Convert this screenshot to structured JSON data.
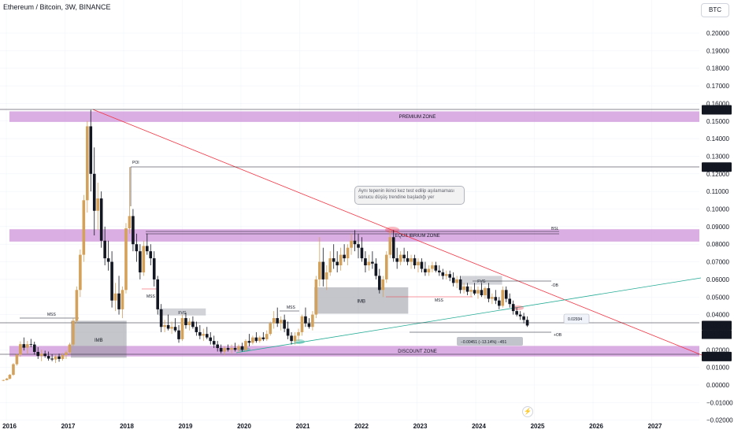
{
  "header": {
    "title": "Ethereum / Bitcoin, 3W, BINANCE",
    "currency_button": "BTC"
  },
  "chart_data": {
    "type": "candlestick",
    "x_ticks": [
      "2016",
      "2017",
      "2018",
      "2019",
      "2020",
      "2021",
      "2022",
      "2023",
      "2024",
      "2025",
      "2026",
      "2027"
    ],
    "y_ticks": [
      0.2,
      0.19,
      0.18,
      0.17,
      0.16,
      0.15,
      0.14,
      0.13,
      0.12,
      0.11,
      0.1,
      0.09,
      0.08,
      0.07,
      0.06,
      0.05,
      0.04,
      0.03,
      0.02,
      0.01,
      0.0,
      -0.01,
      -0.02
    ],
    "y_tick_labels": [
      "0.20000",
      "0.19000",
      "0.18000",
      "0.17000",
      "0.16000",
      "0.15000",
      "0.14000",
      "0.13000",
      "0.12000",
      "0.11000",
      "0.10000",
      "0.09000",
      "0.08000",
      "0.07000",
      "0.06000",
      "0.05000",
      "0.04000",
      "0.03000",
      "0.02000",
      "0.01000",
      "0.00000",
      "−0.01000",
      "−0.02000"
    ],
    "ylim": [
      -0.024,
      0.207
    ],
    "xlim": [
      2015.95,
      2027.6
    ],
    "price_badges": [
      {
        "value": 0.15636,
        "label": "0.15636",
        "style": "plain"
      },
      {
        "value": 0.1238,
        "label": "0.12380",
        "style": "plain"
      },
      {
        "value": 0.03377,
        "label": "0.03377",
        "sublabel": "12d 10h",
        "style": "current"
      },
      {
        "value": 0.01615,
        "label": "0.01615",
        "style": "plain"
      }
    ],
    "zones": [
      {
        "name": "PREMIUM ZONE",
        "low": 0.1495,
        "high": 0.1555
      },
      {
        "name": "EQUILIBRIUM ZONE",
        "low": 0.0815,
        "high": 0.0885
      },
      {
        "name": "DISCOUNT ZONE",
        "low": 0.0162,
        "high": 0.0222
      }
    ],
    "boxes": [
      {
        "label": "IMB",
        "x0": 2017.1,
        "x1": 2018.05,
        "low": 0.0155,
        "high": 0.0365
      },
      {
        "label": "IMB",
        "x0": 2021.25,
        "x1": 2022.85,
        "low": 0.0405,
        "high": 0.0555
      },
      {
        "label": "FVG",
        "x0": 2018.6,
        "x1": 2019.4,
        "low": 0.0395,
        "high": 0.0435
      },
      {
        "label": "FVG",
        "x0": 2023.75,
        "x1": 2024.45,
        "low": 0.057,
        "high": 0.062
      }
    ],
    "annotations": [
      "POI",
      "BSL",
      "MSS",
      "MSS",
      "MSS",
      "MSS",
      "-OB",
      "+OB",
      "0.02934",
      "−0.00451 (−13.14%) −451"
    ],
    "callout": "Aynı tepenin ikinci kez test edilip aşılamaması sonucu düşüş trendine başladığı yer",
    "candles": [
      [
        2015.95,
        0.0026,
        0.003,
        0.0022,
        0.0028
      ],
      [
        2016.01,
        0.0028,
        0.004,
        0.0026,
        0.0036
      ],
      [
        2016.06,
        0.0036,
        0.0062,
        0.0032,
        0.0058
      ],
      [
        2016.12,
        0.0058,
        0.0124,
        0.0052,
        0.0118
      ],
      [
        2016.18,
        0.0118,
        0.0178,
        0.011,
        0.0172
      ],
      [
        2016.24,
        0.0172,
        0.0248,
        0.016,
        0.0232
      ],
      [
        2016.3,
        0.0232,
        0.027,
        0.0196,
        0.0212
      ],
      [
        2016.36,
        0.0212,
        0.025,
        0.0178,
        0.0232
      ],
      [
        2016.42,
        0.0232,
        0.0262,
        0.0214,
        0.023
      ],
      [
        2016.48,
        0.023,
        0.0246,
        0.0172,
        0.0188
      ],
      [
        2016.54,
        0.0188,
        0.0215,
        0.0148,
        0.0165
      ],
      [
        2016.6,
        0.0165,
        0.02,
        0.0135,
        0.0178
      ],
      [
        2016.66,
        0.0178,
        0.0195,
        0.0155,
        0.0165
      ],
      [
        2016.72,
        0.0165,
        0.019,
        0.0138,
        0.015
      ],
      [
        2016.78,
        0.015,
        0.0175,
        0.0135,
        0.0145
      ],
      [
        2016.84,
        0.0145,
        0.0172,
        0.0125,
        0.0162
      ],
      [
        2016.9,
        0.0162,
        0.0178,
        0.0132,
        0.0148
      ],
      [
        2016.96,
        0.0148,
        0.0182,
        0.0138,
        0.017
      ],
      [
        2017.02,
        0.017,
        0.0195,
        0.0148,
        0.0185
      ],
      [
        2017.08,
        0.0185,
        0.024,
        0.0175,
        0.023
      ],
      [
        2017.14,
        0.023,
        0.038,
        0.022,
        0.0365
      ],
      [
        2017.2,
        0.0365,
        0.056,
        0.035,
        0.054
      ],
      [
        2017.26,
        0.054,
        0.077,
        0.05,
        0.074
      ],
      [
        2017.32,
        0.074,
        0.108,
        0.07,
        0.105
      ],
      [
        2017.38,
        0.105,
        0.15,
        0.098,
        0.147
      ],
      [
        2017.44,
        0.147,
        0.1563,
        0.11,
        0.12
      ],
      [
        2017.5,
        0.12,
        0.135,
        0.085,
        0.099
      ],
      [
        2017.56,
        0.099,
        0.115,
        0.088,
        0.106
      ],
      [
        2017.62,
        0.106,
        0.11,
        0.078,
        0.082
      ],
      [
        2017.68,
        0.082,
        0.09,
        0.068,
        0.072
      ],
      [
        2017.74,
        0.072,
        0.082,
        0.065,
        0.07
      ],
      [
        2017.8,
        0.07,
        0.076,
        0.044,
        0.048
      ],
      [
        2017.86,
        0.048,
        0.058,
        0.042,
        0.052
      ],
      [
        2017.92,
        0.052,
        0.062,
        0.04,
        0.043
      ],
      [
        2017.98,
        0.043,
        0.056,
        0.038,
        0.054
      ],
      [
        2018.04,
        0.054,
        0.092,
        0.052,
        0.089
      ],
      [
        2018.1,
        0.089,
        0.1238,
        0.086,
        0.096
      ],
      [
        2018.16,
        0.096,
        0.1,
        0.076,
        0.08
      ],
      [
        2018.22,
        0.08,
        0.086,
        0.07,
        0.076
      ],
      [
        2018.28,
        0.076,
        0.08,
        0.06,
        0.064
      ],
      [
        2018.34,
        0.064,
        0.082,
        0.062,
        0.079
      ],
      [
        2018.4,
        0.079,
        0.086,
        0.074,
        0.076
      ],
      [
        2018.46,
        0.076,
        0.08,
        0.068,
        0.072
      ],
      [
        2018.52,
        0.072,
        0.076,
        0.056,
        0.06
      ],
      [
        2018.58,
        0.06,
        0.062,
        0.04,
        0.043
      ],
      [
        2018.64,
        0.043,
        0.046,
        0.03,
        0.033
      ],
      [
        2018.7,
        0.033,
        0.037,
        0.03,
        0.034
      ],
      [
        2018.76,
        0.034,
        0.04,
        0.031,
        0.032
      ],
      [
        2018.82,
        0.032,
        0.036,
        0.029,
        0.033
      ],
      [
        2018.88,
        0.033,
        0.038,
        0.03,
        0.031
      ],
      [
        2018.94,
        0.031,
        0.034,
        0.024,
        0.026
      ],
      [
        2019.0,
        0.026,
        0.04,
        0.025,
        0.038
      ],
      [
        2019.06,
        0.038,
        0.041,
        0.032,
        0.034
      ],
      [
        2019.12,
        0.034,
        0.038,
        0.031,
        0.036
      ],
      [
        2019.18,
        0.036,
        0.039,
        0.032,
        0.033
      ],
      [
        2019.24,
        0.033,
        0.036,
        0.028,
        0.03
      ],
      [
        2019.3,
        0.03,
        0.034,
        0.026,
        0.028
      ],
      [
        2019.36,
        0.028,
        0.032,
        0.025,
        0.029
      ],
      [
        2019.42,
        0.029,
        0.033,
        0.026,
        0.027
      ],
      [
        2019.48,
        0.027,
        0.03,
        0.023,
        0.025
      ],
      [
        2019.54,
        0.025,
        0.028,
        0.021,
        0.023
      ],
      [
        2019.6,
        0.023,
        0.025,
        0.019,
        0.021
      ],
      [
        2019.66,
        0.021,
        0.023,
        0.018,
        0.019
      ],
      [
        2019.72,
        0.019,
        0.022,
        0.017,
        0.021
      ],
      [
        2019.78,
        0.021,
        0.023,
        0.019,
        0.02
      ],
      [
        2019.84,
        0.02,
        0.023,
        0.018,
        0.021
      ],
      [
        2019.9,
        0.021,
        0.024,
        0.019,
        0.02
      ],
      [
        2019.96,
        0.02,
        0.023,
        0.0185,
        0.022
      ],
      [
        2020.02,
        0.022,
        0.024,
        0.019,
        0.02
      ],
      [
        2020.08,
        0.02,
        0.026,
        0.019,
        0.025
      ],
      [
        2020.14,
        0.025,
        0.029,
        0.022,
        0.024
      ],
      [
        2020.2,
        0.024,
        0.028,
        0.023,
        0.027
      ],
      [
        2020.26,
        0.027,
        0.03,
        0.024,
        0.025
      ],
      [
        2020.32,
        0.025,
        0.028,
        0.024,
        0.027
      ],
      [
        2020.38,
        0.027,
        0.03,
        0.025,
        0.026
      ],
      [
        2020.44,
        0.026,
        0.031,
        0.025,
        0.029
      ],
      [
        2020.5,
        0.029,
        0.036,
        0.028,
        0.035
      ],
      [
        2020.56,
        0.035,
        0.042,
        0.032,
        0.038
      ],
      [
        2020.62,
        0.038,
        0.044,
        0.033,
        0.035
      ],
      [
        2020.68,
        0.035,
        0.039,
        0.031,
        0.037
      ],
      [
        2020.74,
        0.037,
        0.04,
        0.03,
        0.032
      ],
      [
        2020.8,
        0.032,
        0.036,
        0.026,
        0.028
      ],
      [
        2020.86,
        0.028,
        0.03,
        0.023,
        0.025
      ],
      [
        2020.92,
        0.025,
        0.03,
        0.023,
        0.028
      ],
      [
        2020.98,
        0.028,
        0.032,
        0.025,
        0.03
      ],
      [
        2021.04,
        0.03,
        0.04,
        0.028,
        0.039
      ],
      [
        2021.1,
        0.039,
        0.044,
        0.033,
        0.035
      ],
      [
        2021.16,
        0.035,
        0.038,
        0.032,
        0.033
      ],
      [
        2021.22,
        0.033,
        0.042,
        0.031,
        0.04
      ],
      [
        2021.28,
        0.04,
        0.062,
        0.038,
        0.06
      ],
      [
        2021.34,
        0.06,
        0.084,
        0.056,
        0.07
      ],
      [
        2021.4,
        0.07,
        0.078,
        0.056,
        0.06
      ],
      [
        2021.46,
        0.06,
        0.068,
        0.054,
        0.064
      ],
      [
        2021.52,
        0.064,
        0.076,
        0.062,
        0.072
      ],
      [
        2021.58,
        0.072,
        0.08,
        0.066,
        0.07
      ],
      [
        2021.64,
        0.07,
        0.076,
        0.064,
        0.068
      ],
      [
        2021.7,
        0.068,
        0.078,
        0.065,
        0.074
      ],
      [
        2021.76,
        0.074,
        0.08,
        0.07,
        0.072
      ],
      [
        2021.82,
        0.072,
        0.08,
        0.068,
        0.078
      ],
      [
        2021.88,
        0.078,
        0.086,
        0.074,
        0.082
      ],
      [
        2021.94,
        0.082,
        0.088,
        0.076,
        0.08
      ],
      [
        2022.0,
        0.08,
        0.086,
        0.072,
        0.078
      ],
      [
        2022.06,
        0.078,
        0.084,
        0.07,
        0.072
      ],
      [
        2022.12,
        0.072,
        0.076,
        0.064,
        0.068
      ],
      [
        2022.18,
        0.068,
        0.074,
        0.065,
        0.07
      ],
      [
        2022.24,
        0.07,
        0.076,
        0.066,
        0.069
      ],
      [
        2022.3,
        0.069,
        0.072,
        0.06,
        0.062
      ],
      [
        2022.36,
        0.062,
        0.066,
        0.052,
        0.054
      ],
      [
        2022.42,
        0.054,
        0.062,
        0.05,
        0.06
      ],
      [
        2022.48,
        0.06,
        0.076,
        0.058,
        0.074
      ],
      [
        2022.54,
        0.074,
        0.088,
        0.072,
        0.084
      ],
      [
        2022.6,
        0.084,
        0.088,
        0.07,
        0.072
      ],
      [
        2022.66,
        0.072,
        0.078,
        0.066,
        0.07
      ],
      [
        2022.72,
        0.07,
        0.076,
        0.068,
        0.074
      ],
      [
        2022.78,
        0.074,
        0.078,
        0.07,
        0.072
      ],
      [
        2022.84,
        0.072,
        0.076,
        0.068,
        0.07
      ],
      [
        2022.9,
        0.07,
        0.074,
        0.066,
        0.072
      ],
      [
        2022.96,
        0.072,
        0.074,
        0.066,
        0.068
      ],
      [
        2023.02,
        0.068,
        0.072,
        0.064,
        0.07
      ],
      [
        2023.08,
        0.07,
        0.072,
        0.064,
        0.066
      ],
      [
        2023.14,
        0.066,
        0.07,
        0.062,
        0.064
      ],
      [
        2023.2,
        0.064,
        0.068,
        0.062,
        0.066
      ],
      [
        2023.26,
        0.066,
        0.07,
        0.064,
        0.068
      ],
      [
        2023.32,
        0.068,
        0.07,
        0.064,
        0.065
      ],
      [
        2023.38,
        0.065,
        0.068,
        0.062,
        0.064
      ],
      [
        2023.44,
        0.064,
        0.066,
        0.06,
        0.062
      ],
      [
        2023.5,
        0.062,
        0.065,
        0.06,
        0.063
      ],
      [
        2023.56,
        0.063,
        0.065,
        0.059,
        0.061
      ],
      [
        2023.62,
        0.061,
        0.064,
        0.056,
        0.058
      ],
      [
        2023.68,
        0.058,
        0.062,
        0.055,
        0.06
      ],
      [
        2023.74,
        0.06,
        0.062,
        0.052,
        0.054
      ],
      [
        2023.8,
        0.054,
        0.058,
        0.052,
        0.056
      ],
      [
        2023.86,
        0.056,
        0.058,
        0.051,
        0.053
      ],
      [
        2023.92,
        0.053,
        0.056,
        0.05,
        0.054
      ],
      [
        2023.98,
        0.054,
        0.058,
        0.051,
        0.052
      ],
      [
        2024.04,
        0.052,
        0.056,
        0.049,
        0.054
      ],
      [
        2024.1,
        0.054,
        0.058,
        0.05,
        0.051
      ],
      [
        2024.16,
        0.051,
        0.056,
        0.049,
        0.055
      ],
      [
        2024.22,
        0.055,
        0.058,
        0.047,
        0.049
      ],
      [
        2024.28,
        0.049,
        0.052,
        0.046,
        0.05
      ],
      [
        2024.34,
        0.05,
        0.054,
        0.046,
        0.048
      ],
      [
        2024.4,
        0.048,
        0.05,
        0.043,
        0.045
      ],
      [
        2024.46,
        0.045,
        0.056,
        0.044,
        0.054
      ],
      [
        2024.52,
        0.054,
        0.056,
        0.047,
        0.049
      ],
      [
        2024.58,
        0.049,
        0.052,
        0.044,
        0.046
      ],
      [
        2024.64,
        0.046,
        0.048,
        0.04,
        0.042
      ],
      [
        2024.7,
        0.042,
        0.044,
        0.039,
        0.04
      ],
      [
        2024.76,
        0.04,
        0.042,
        0.037,
        0.039
      ],
      [
        2024.82,
        0.039,
        0.041,
        0.035,
        0.037
      ],
      [
        2024.88,
        0.037,
        0.039,
        0.033,
        0.0338
      ]
    ]
  }
}
